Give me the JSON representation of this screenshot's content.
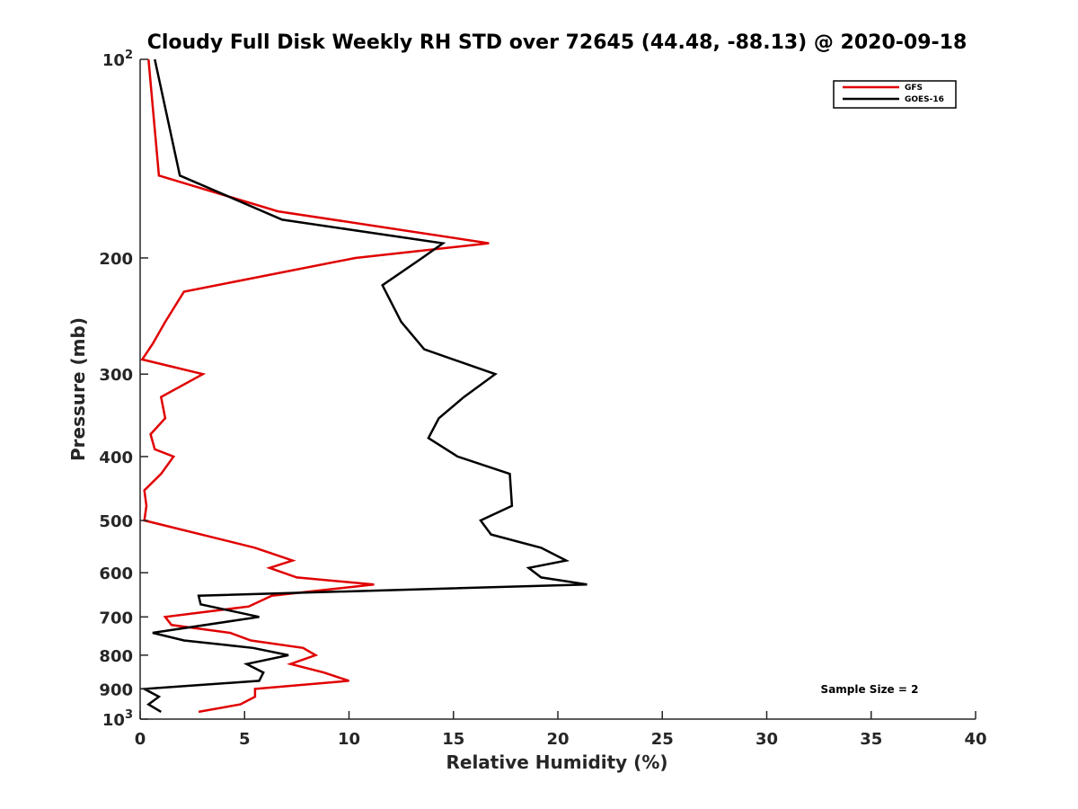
{
  "chart_data": {
    "type": "line",
    "title": "Cloudy Full Disk Weekly RH STD over 72645 (44.48, -88.13) @ 2020-09-18",
    "xlabel": "Relative Humidity (%)",
    "ylabel": "Pressure (mb)",
    "xlim": [
      0,
      40
    ],
    "ylim": [
      100,
      1000
    ],
    "yscale": "log",
    "y_reversed": true,
    "grid": false,
    "legend_position": "top-right",
    "x_ticks": [
      "0",
      "5",
      "10",
      "15",
      "20",
      "25",
      "30",
      "35",
      "40"
    ],
    "y_ticks": [
      {
        "value": 100,
        "base": "10",
        "exp": "2"
      },
      {
        "value": 200,
        "label": "200"
      },
      {
        "value": 300,
        "label": "300"
      },
      {
        "value": 400,
        "label": "400"
      },
      {
        "value": 500,
        "label": "500"
      },
      {
        "value": 600,
        "label": "600"
      },
      {
        "value": 700,
        "label": "700"
      },
      {
        "value": 800,
        "label": "800"
      },
      {
        "value": 900,
        "label": "900"
      },
      {
        "value": 1000,
        "base": "10",
        "exp": "3"
      }
    ],
    "series": [
      {
        "name": "GFS",
        "color": "#e00000",
        "points": [
          [
            0.4,
            100
          ],
          [
            0.9,
            150
          ],
          [
            6.6,
            170
          ],
          [
            16.7,
            190
          ],
          [
            10.3,
            200
          ],
          [
            2.1,
            225
          ],
          [
            1.2,
            250
          ],
          [
            0.6,
            270
          ],
          [
            0.1,
            285
          ],
          [
            3,
            300
          ],
          [
            1,
            325
          ],
          [
            1.2,
            350
          ],
          [
            0.5,
            370
          ],
          [
            0.7,
            390
          ],
          [
            1.6,
            400
          ],
          [
            1,
            425
          ],
          [
            0.2,
            450
          ],
          [
            0.3,
            475
          ],
          [
            0.2,
            500
          ],
          [
            5.5,
            550
          ],
          [
            7.3,
            575
          ],
          [
            6.2,
            590
          ],
          [
            7.5,
            610
          ],
          [
            11.2,
            625
          ],
          [
            6.3,
            650
          ],
          [
            5.2,
            675
          ],
          [
            1.2,
            700
          ],
          [
            1.5,
            720
          ],
          [
            4.3,
            740
          ],
          [
            5.3,
            760
          ],
          [
            7.8,
            780
          ],
          [
            8.4,
            800
          ],
          [
            7.2,
            825
          ],
          [
            8.8,
            850
          ],
          [
            10,
            875
          ],
          [
            5.5,
            900
          ],
          [
            5.5,
            925
          ],
          [
            4.8,
            950
          ],
          [
            2.8,
            975
          ]
        ]
      },
      {
        "name": "GOES-16",
        "color": "#000000",
        "points": [
          [
            0.7,
            100
          ],
          [
            1.9,
            150
          ],
          [
            6.8,
            175
          ],
          [
            14.5,
            190
          ],
          [
            13.5,
            200
          ],
          [
            11.6,
            220
          ],
          [
            12.5,
            250
          ],
          [
            13.6,
            275
          ],
          [
            17,
            300
          ],
          [
            15.5,
            325
          ],
          [
            14.3,
            350
          ],
          [
            13.8,
            375
          ],
          [
            15.2,
            400
          ],
          [
            17.7,
            425
          ],
          [
            17.8,
            475
          ],
          [
            16.3,
            500
          ],
          [
            16.8,
            525
          ],
          [
            19.2,
            550
          ],
          [
            20.4,
            575
          ],
          [
            18.6,
            590
          ],
          [
            19.2,
            610
          ],
          [
            21.4,
            625
          ],
          [
            2.8,
            650
          ],
          [
            2.9,
            670
          ],
          [
            5.7,
            700
          ],
          [
            0.6,
            740
          ],
          [
            2.1,
            760
          ],
          [
            5.4,
            780
          ],
          [
            7.1,
            800
          ],
          [
            5.1,
            825
          ],
          [
            5.9,
            850
          ],
          [
            5.7,
            875
          ],
          [
            0.2,
            900
          ],
          [
            0.9,
            925
          ],
          [
            0.4,
            950
          ],
          [
            1,
            975
          ]
        ]
      }
    ],
    "annotation": "Sample Size = 2"
  }
}
